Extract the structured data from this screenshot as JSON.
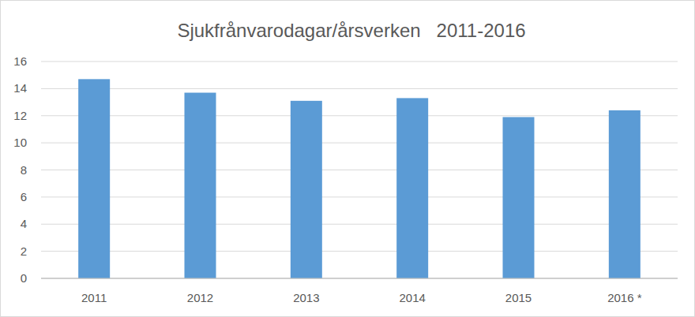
{
  "chart_data": {
    "type": "bar",
    "title": "Sjukfrånvarodagar/årsverken   2011-2016",
    "categories": [
      "2011",
      "2012",
      "2013",
      "2014",
      "2015",
      "2016 *"
    ],
    "values": [
      14.7,
      13.7,
      13.1,
      13.3,
      11.9,
      12.4
    ],
    "color": "#5b9bd5",
    "ylim": [
      0,
      16
    ],
    "yticks": [
      0,
      2,
      4,
      6,
      8,
      10,
      12,
      14,
      16
    ],
    "grid": true
  }
}
